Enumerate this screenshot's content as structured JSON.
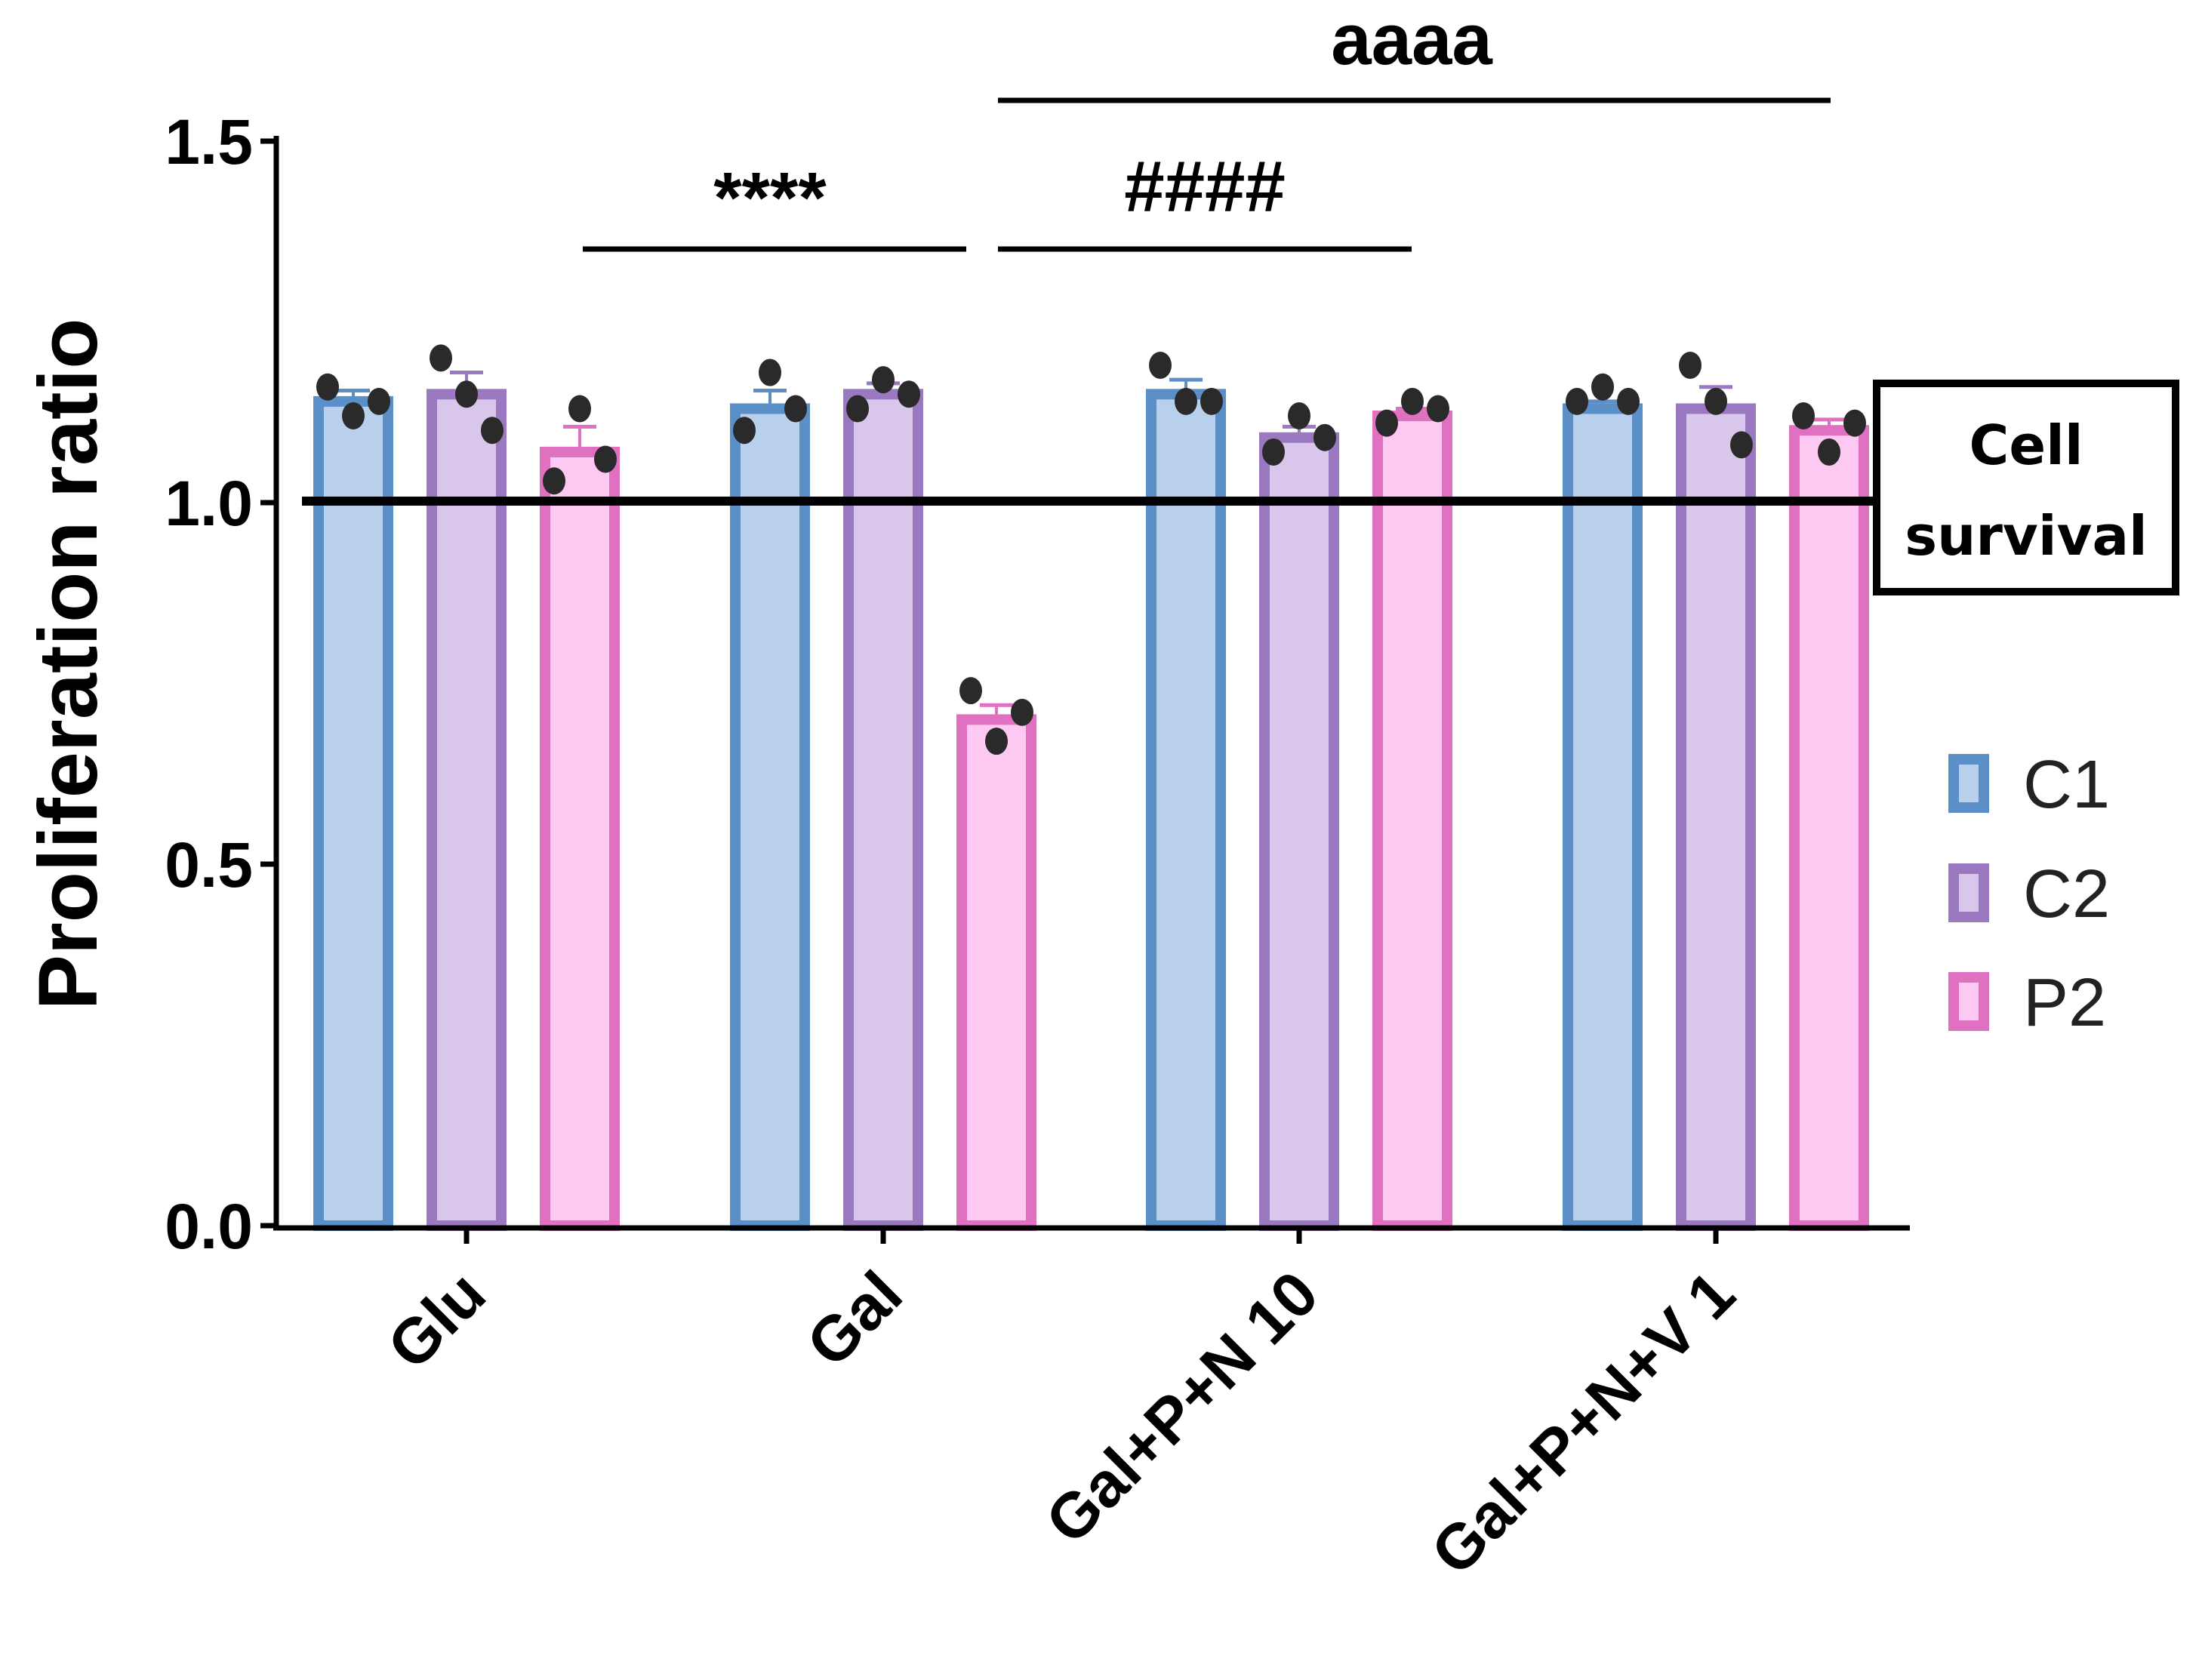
{
  "chart_data": {
    "type": "bar",
    "title": "",
    "xlabel": "",
    "ylabel": "Proliferation ratio",
    "ylim": [
      0,
      1.5
    ],
    "yticks": [
      "0.0",
      "0.5",
      "1.0",
      "1.5"
    ],
    "ytick_values": [
      0,
      0.5,
      1.0,
      1.5
    ],
    "categories": [
      "Glu",
      "Gal",
      "Gal+P+N 10",
      "Gal+P+N+V 1"
    ],
    "series": [
      {
        "name": "C1",
        "color": "#5b8fc7",
        "fill": "#b8d0ec",
        "values": [
          1.14,
          1.13,
          1.15,
          1.13
        ],
        "errors": [
          0.015,
          0.025,
          0.02,
          0.01
        ],
        "points": [
          [
            1.16,
            1.12,
            1.14
          ],
          [
            1.1,
            1.18,
            1.13
          ],
          [
            1.19,
            1.14,
            1.14
          ],
          [
            1.14,
            1.16,
            1.14
          ]
        ]
      },
      {
        "name": "C2",
        "color": "#9b79c0",
        "fill": "#d8c7ea",
        "values": [
          1.15,
          1.15,
          1.09,
          1.13
        ],
        "errors": [
          0.03,
          0.015,
          0.015,
          0.03
        ],
        "points": [
          [
            1.2,
            1.15,
            1.1
          ],
          [
            1.13,
            1.17,
            1.15
          ],
          [
            1.07,
            1.12,
            1.09
          ],
          [
            1.19,
            1.14,
            1.08
          ]
        ]
      },
      {
        "name": "P2",
        "color": "#e070c0",
        "fill": "#fdc8f2",
        "values": [
          1.07,
          0.7,
          1.12,
          1.1
        ],
        "errors": [
          0.035,
          0.02,
          0.01,
          0.015
        ],
        "points": [
          [
            1.03,
            1.13,
            1.06
          ],
          [
            0.74,
            0.67,
            0.71
          ],
          [
            1.11,
            1.14,
            1.13
          ],
          [
            1.12,
            1.07,
            1.11
          ]
        ]
      }
    ],
    "reference_line": 1.0,
    "annotations": [
      {
        "text": "****",
        "from": "Glu:P2",
        "to": "Gal:P2"
      },
      {
        "text": "####",
        "from": "Gal:P2",
        "to": "Gal+P+N 10:P2"
      },
      {
        "text": "aaaa",
        "from": "Gal:P2",
        "to": "Gal+P+N+V 1:P2"
      }
    ],
    "box_label": [
      "Cell",
      "survival"
    ],
    "legend_placement": "right"
  }
}
